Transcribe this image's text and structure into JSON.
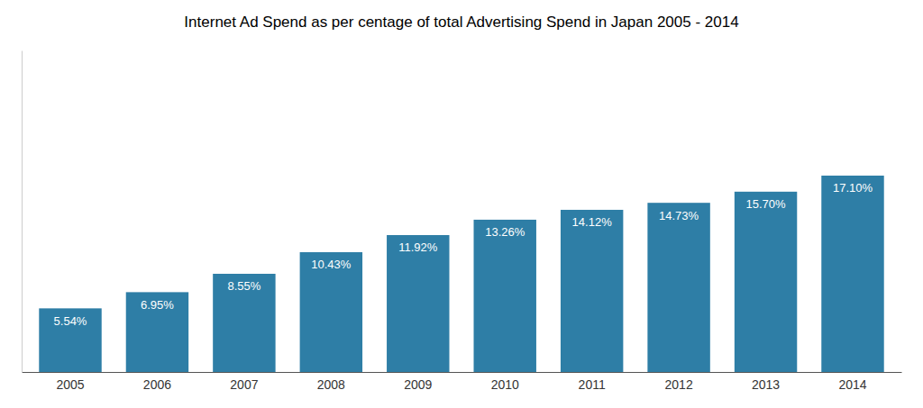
{
  "chart_data": {
    "type": "bar",
    "title": "Internet Ad Spend as per centage of total Advertising Spend in Japan 2005 - 2014",
    "categories": [
      "2005",
      "2006",
      "2007",
      "2008",
      "2009",
      "2010",
      "2011",
      "2012",
      "2013",
      "2014"
    ],
    "values": [
      5.54,
      6.95,
      8.55,
      10.43,
      11.92,
      13.26,
      14.12,
      14.73,
      15.7,
      17.1
    ],
    "value_labels": [
      "5.54%",
      "6.95%",
      "8.55%",
      "10.43%",
      "11.92%",
      "13.26%",
      "14.12%",
      "14.73%",
      "15.70%",
      "17.10%"
    ],
    "data_labels": true,
    "color": "#2e7ea6",
    "ylim": [
      0,
      28
    ],
    "grid": false,
    "tick_labels": "x"
  }
}
